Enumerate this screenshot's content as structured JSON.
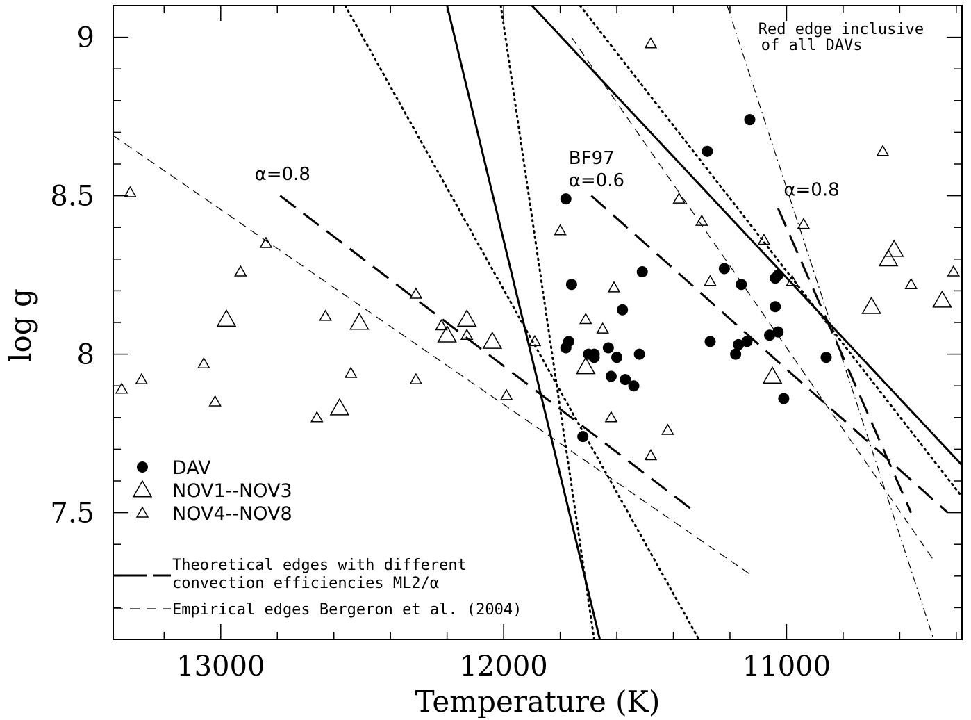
{
  "chart_data": {
    "type": "scatter",
    "xlabel": "Temperature (K)",
    "ylabel": "log g",
    "xlim": [
      13380,
      10380
    ],
    "ylim": [
      7.1,
      9.1
    ],
    "x_reversed": true,
    "xticks_major": [
      13000,
      12000,
      11000
    ],
    "xticks_minor_step": 200,
    "yticks_major": [
      7.5,
      8,
      8.5,
      9
    ],
    "yticks_major_labels": [
      "7.5",
      "8",
      "8.5",
      "9"
    ],
    "yticks_minor_step": 0.1,
    "grid": false,
    "series": [
      {
        "name": "DAV",
        "marker": "filled-circle",
        "points": [
          [
            11780,
            8.49
          ],
          [
            11760,
            8.22
          ],
          [
            11780,
            8.02
          ],
          [
            11770,
            8.04
          ],
          [
            11720,
            7.74
          ],
          [
            11700,
            8.0
          ],
          [
            11680,
            8.0
          ],
          [
            11680,
            7.99
          ],
          [
            11630,
            8.02
          ],
          [
            11620,
            7.93
          ],
          [
            11600,
            7.99
          ],
          [
            11580,
            8.14
          ],
          [
            11570,
            7.92
          ],
          [
            11540,
            7.9
          ],
          [
            11520,
            8.0
          ],
          [
            11510,
            8.26
          ],
          [
            11280,
            8.64
          ],
          [
            11270,
            8.04
          ],
          [
            11220,
            8.27
          ],
          [
            11180,
            8.0
          ],
          [
            11170,
            8.03
          ],
          [
            11160,
            8.22
          ],
          [
            11140,
            8.04
          ],
          [
            11130,
            8.74
          ],
          [
            11060,
            8.06
          ],
          [
            11040,
            8.24
          ],
          [
            11040,
            8.15
          ],
          [
            11030,
            8.25
          ],
          [
            11030,
            8.07
          ],
          [
            11010,
            7.86
          ],
          [
            10860,
            7.99
          ]
        ]
      },
      {
        "name": "NOV1--NOV3",
        "marker": "large-open-triangle",
        "points": [
          [
            12980,
            8.11
          ],
          [
            12580,
            7.83
          ],
          [
            12510,
            8.1
          ],
          [
            12200,
            8.06
          ],
          [
            12130,
            8.11
          ],
          [
            12040,
            8.04
          ],
          [
            11710,
            7.96
          ],
          [
            11050,
            7.93
          ],
          [
            10700,
            8.15
          ],
          [
            10640,
            8.3
          ],
          [
            10620,
            8.33
          ],
          [
            10450,
            8.17
          ]
        ]
      },
      {
        "name": "NOV4--NOV8",
        "marker": "small-open-triangle",
        "points": [
          [
            13350,
            7.89
          ],
          [
            13320,
            8.51
          ],
          [
            13280,
            7.92
          ],
          [
            13060,
            7.97
          ],
          [
            13020,
            7.85
          ],
          [
            12930,
            8.26
          ],
          [
            12840,
            8.35
          ],
          [
            12660,
            7.8
          ],
          [
            12630,
            8.12
          ],
          [
            12540,
            7.94
          ],
          [
            12310,
            7.92
          ],
          [
            12310,
            8.19
          ],
          [
            12220,
            8.09
          ],
          [
            12130,
            8.06
          ],
          [
            11990,
            7.87
          ],
          [
            11890,
            8.04
          ],
          [
            11800,
            8.39
          ],
          [
            11710,
            8.11
          ],
          [
            11650,
            8.08
          ],
          [
            11620,
            7.8
          ],
          [
            11610,
            8.21
          ],
          [
            11480,
            7.68
          ],
          [
            11480,
            8.98
          ],
          [
            11420,
            7.76
          ],
          [
            11380,
            8.49
          ],
          [
            11300,
            8.42
          ],
          [
            11270,
            8.23
          ],
          [
            11080,
            8.36
          ],
          [
            10980,
            8.23
          ],
          [
            10940,
            8.41
          ],
          [
            10660,
            8.64
          ],
          [
            10560,
            8.22
          ],
          [
            10410,
            8.26
          ]
        ]
      }
    ],
    "lines": [
      {
        "style": "solid-thick",
        "points": [
          [
            12200,
            9.1
          ],
          [
            11660,
            7.1
          ]
        ]
      },
      {
        "style": "solid-thick",
        "points": [
          [
            11900,
            9.1
          ],
          [
            10380,
            7.65
          ]
        ]
      },
      {
        "style": "dotted",
        "points": [
          [
            12010,
            9.1
          ],
          [
            11680,
            7.1
          ]
        ]
      },
      {
        "style": "dotted",
        "points": [
          [
            11730,
            9.1
          ],
          [
            10380,
            7.55
          ]
        ]
      },
      {
        "style": "dotted",
        "points": [
          [
            12560,
            9.1
          ],
          [
            11310,
            7.1
          ]
        ]
      },
      {
        "style": "long-dash",
        "points": [
          [
            12790,
            8.5
          ],
          [
            11320,
            7.5
          ]
        ]
      },
      {
        "style": "long-dash",
        "points": [
          [
            11690,
            8.5
          ],
          [
            10430,
            7.5
          ]
        ]
      },
      {
        "style": "long-dash",
        "points": [
          [
            11030,
            8.46
          ],
          [
            10560,
            7.5
          ]
        ]
      },
      {
        "style": "short-dash",
        "points": [
          [
            13380,
            8.69
          ],
          [
            11120,
            7.3
          ]
        ]
      },
      {
        "style": "short-dash",
        "points": [
          [
            11760,
            9.0
          ],
          [
            10480,
            7.35
          ]
        ]
      },
      {
        "style": "dash-dot",
        "points": [
          [
            11210,
            9.1
          ],
          [
            10480,
            7.1
          ]
        ]
      }
    ],
    "annotations": [
      {
        "text": "α=0.8",
        "x": 12880,
        "y": 8.55
      },
      {
        "text": "BF97",
        "x": 11770,
        "y": 8.6
      },
      {
        "text": "α=0.6",
        "x": 11770,
        "y": 8.53
      },
      {
        "text": "α=0.8",
        "x": 11010,
        "y": 8.5
      },
      {
        "text": "Red edge inclusive",
        "x": 11100,
        "y": 9.01
      },
      {
        "text": "of all DAVs",
        "x": 11090,
        "y": 8.96
      }
    ],
    "legend": {
      "placement": "bottom-left",
      "entries": [
        "DAV",
        "NOV1--NOV3",
        "NOV4--NOV8"
      ]
    },
    "lines_legend": [
      {
        "line1": "Theoretical edges with different",
        "line2": "convection efficiencies ML2/α"
      },
      {
        "line1": "Empirical edges Bergeron et al. (2004)"
      }
    ]
  }
}
